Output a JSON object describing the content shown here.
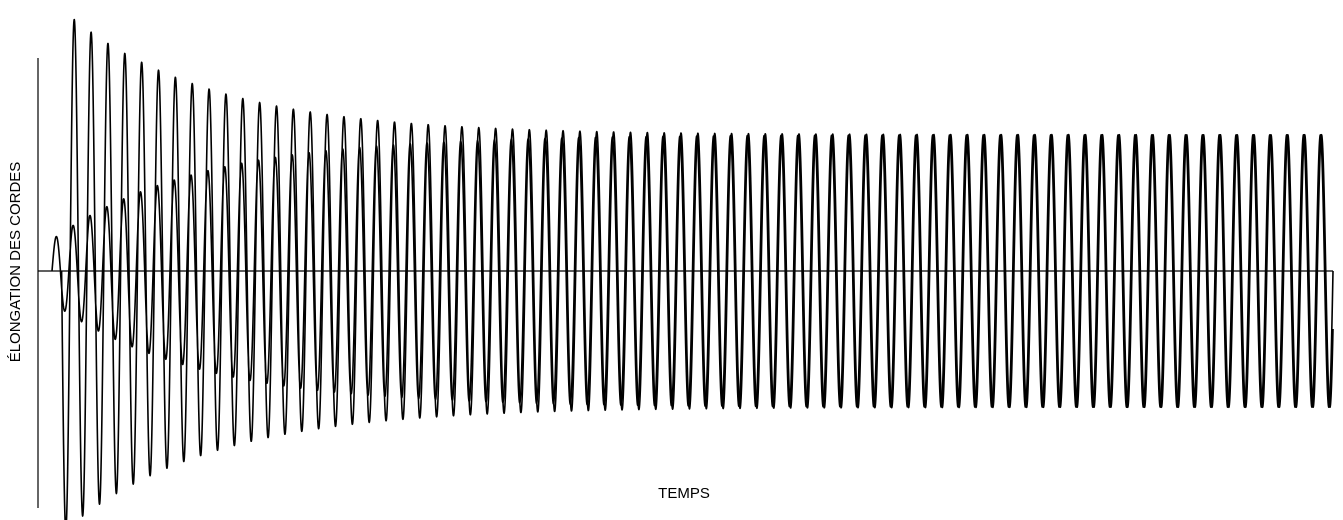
{
  "chart_data": {
    "type": "line",
    "title": "",
    "xlabel": "TEMPS",
    "ylabel": "ÉLONGATION DES CORDES",
    "grid": false,
    "legend": "none",
    "xlim": [
      0,
      80
    ],
    "ylim": [
      -1,
      1
    ],
    "series": [
      {
        "key": "a",
        "color": "#000000",
        "t_start": 0.6,
        "cycles": 76,
        "phase": 0,
        "envelope": {
          "initial": 1.0,
          "final": 0.52,
          "decay": 0.11
        }
      },
      {
        "key": "b",
        "color": "#000000",
        "t_start": 0.0,
        "cycles": 76,
        "phase": 3.14159,
        "envelope": {
          "initial": 0.12,
          "final": 0.52,
          "decay": 0.11
        }
      }
    ]
  },
  "colors": {
    "background": "#ffffff",
    "ink": "#000000"
  }
}
